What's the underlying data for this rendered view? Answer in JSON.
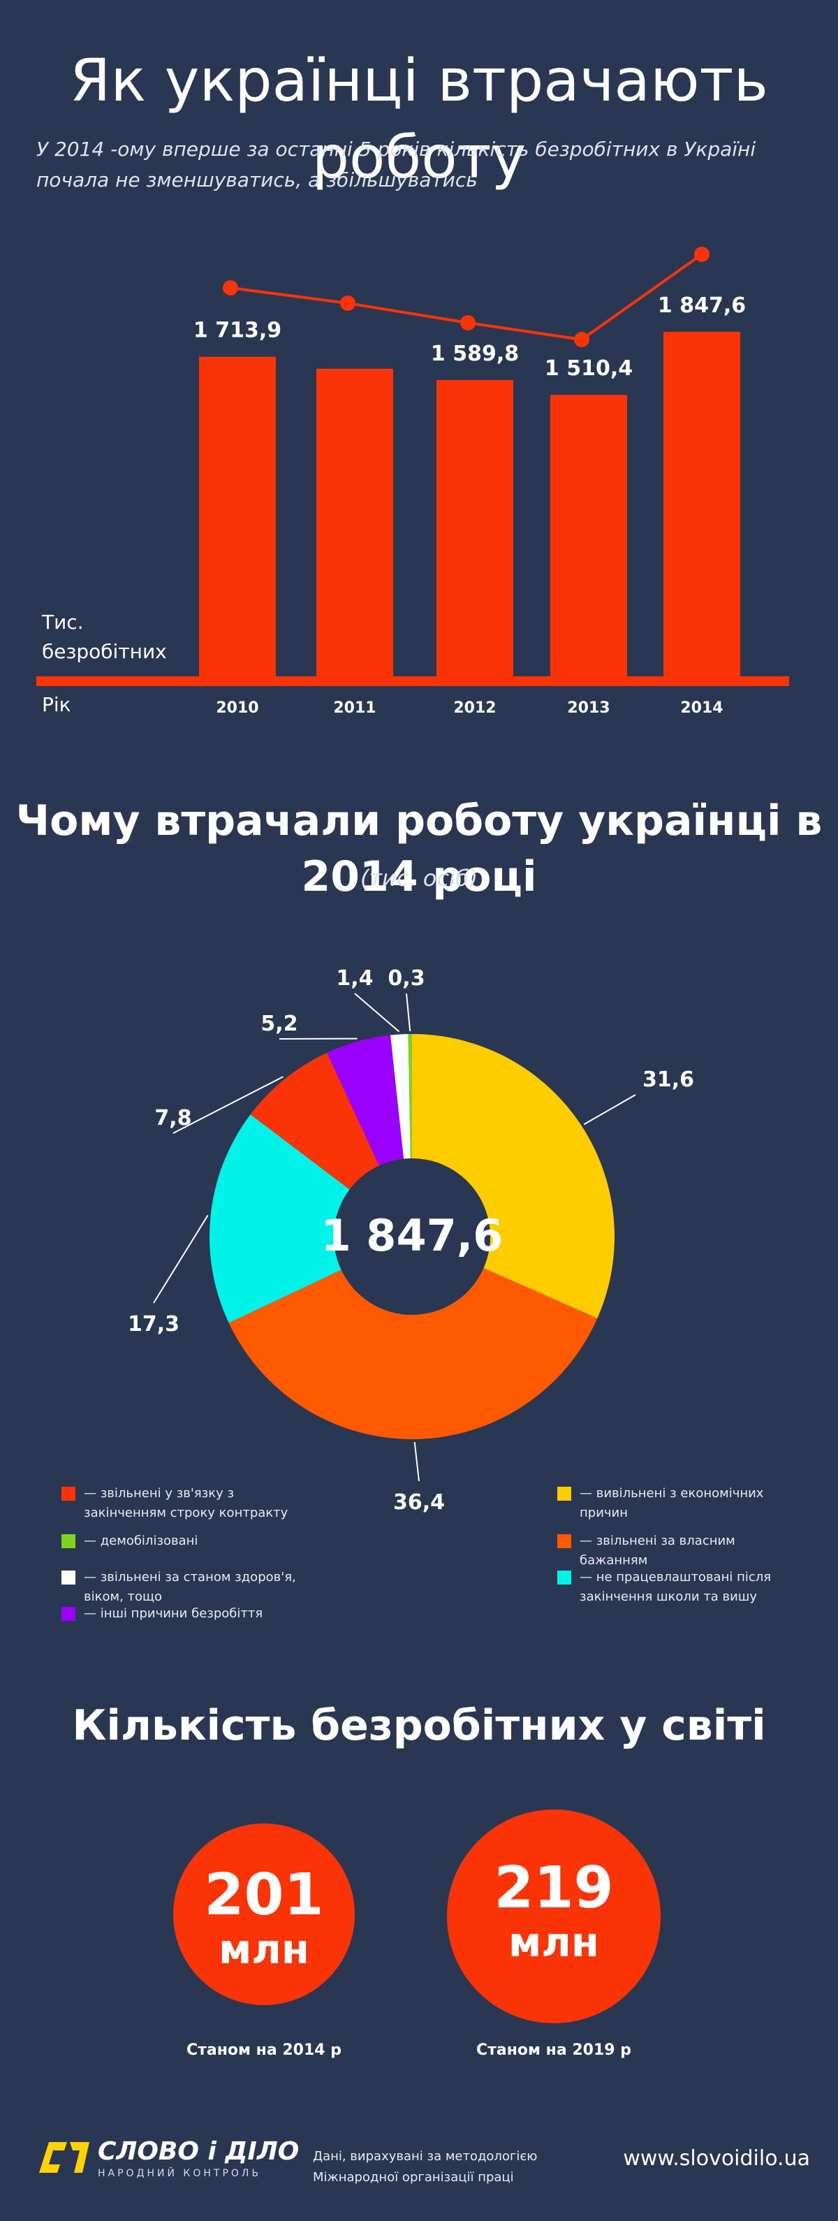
{
  "header": {
    "title": "Як українці втрачають роботу",
    "subtitle": "У 2014 -ому  вперше за останні 5 років кількість безробітних в Україні почала не зменшуватись, а збільшуватись"
  },
  "colors": {
    "background": "#293753",
    "accent_red": "#fa3407",
    "yellow": "#ffcc00",
    "orange": "#ff5a00",
    "cyan": "#00f2e9",
    "violet": "#9a00ff",
    "white": "#ffffff",
    "green": "#7ed321"
  },
  "chart_data": [
    {
      "type": "bar",
      "ylabel": "Тис. безробітних",
      "xlabel": "Рік",
      "categories": [
        "2010",
        "2011",
        "2012",
        "2013",
        "2014"
      ],
      "values": [
        1713.9,
        1650.0,
        1589.8,
        1510.4,
        1847.6
      ],
      "value_labels": [
        "1 713,9",
        "",
        "1 589,8",
        "1 510,4",
        "1 847,6"
      ],
      "overlay_line": true,
      "ylim": [
        0,
        1900
      ]
    },
    {
      "type": "pie",
      "title": "Чому втрачали роботу українці в 2014 році",
      "subtitle": "(тис. осіб)",
      "center_label": "1 847,6",
      "total": 1847.6,
      "slices": [
        {
          "label": "31,6",
          "legend": "— вивільнені з економічних причин",
          "value": 31.6,
          "color": "#ffcc00"
        },
        {
          "label": "36,4",
          "legend": "— звільнені за власним бажанням",
          "value": 36.4,
          "color": "#ff5a00"
        },
        {
          "label": "17,3",
          "legend": "— не працевлаштовані після закінчення школи та вишу",
          "value": 17.3,
          "color": "#00f2e9"
        },
        {
          "label": "7,8",
          "legend": "— звільнені у зв'язку з закінченням строку контракту",
          "value": 7.8,
          "color": "#fa3407"
        },
        {
          "label": "5,2",
          "legend": "— інші причини безробіття",
          "value": 5.2,
          "color": "#9a00ff"
        },
        {
          "label": "1,4",
          "legend": "— звільнені за станом здоров'я, віком, тощо",
          "value": 1.4,
          "color": "#ffffff"
        },
        {
          "label": "0,3",
          "legend": "— демобілізовані",
          "value": 0.3,
          "color": "#7ed321"
        }
      ]
    }
  ],
  "world": {
    "title": "Кількість безробітних у світі",
    "items": [
      {
        "num": "201",
        "unit": "млн",
        "caption": "Станом на 2014 р"
      },
      {
        "num": "219",
        "unit": "млн",
        "caption": "Станом на 2019 р"
      }
    ]
  },
  "footer": {
    "logo_text": "СЛОВО і ДІЛО",
    "logo_sub": "НАРОДНИЙ КОНТРОЛЬ",
    "note": "Дані, вирахувані за методологією Міжнародної організації праці",
    "url": "www.slovoidilo.ua"
  }
}
